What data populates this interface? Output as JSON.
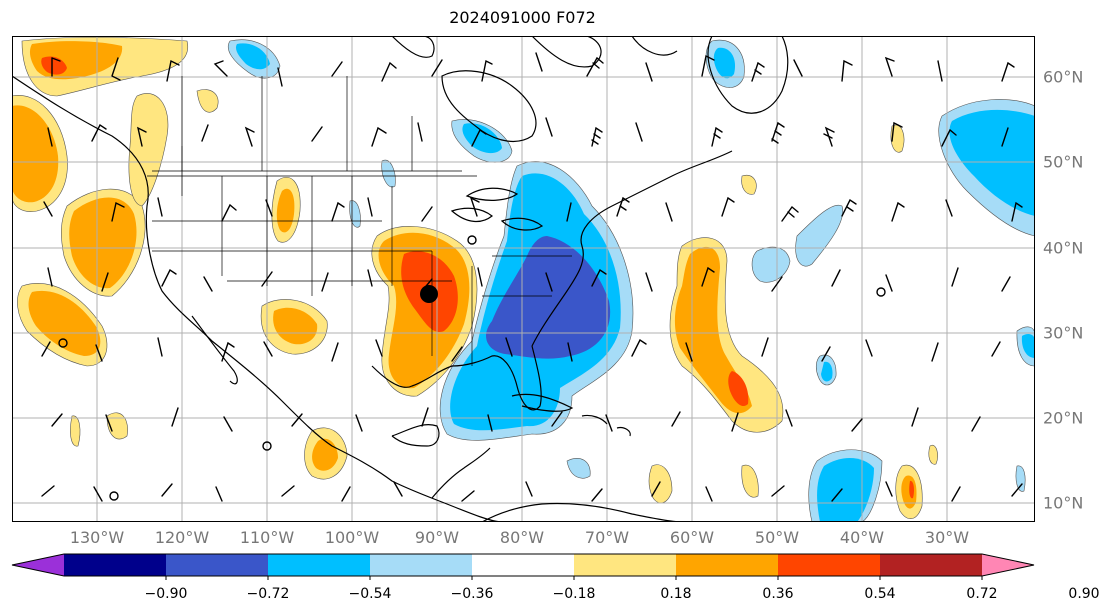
{
  "title": "2024091000 F072",
  "lon_labels": [
    "130°W",
    "120°W",
    "110°W",
    "100°W",
    "90°W",
    "80°W",
    "70°W",
    "60°W",
    "50°W",
    "40°W",
    "30°W"
  ],
  "lat_labels": [
    "60°N",
    "50°N",
    "40°N",
    "30°N",
    "20°N",
    "10°N"
  ],
  "colorbar": {
    "ticks": [
      "−0.90",
      "−0.72",
      "−0.54",
      "−0.36",
      "−0.18",
      "0.18",
      "0.36",
      "0.54",
      "0.72",
      "0.90"
    ],
    "colors": [
      "#9b30d9",
      "#00008b",
      "#3a56c9",
      "#00bfff",
      "#a6dcf7",
      "#ffffff",
      "#ffe680",
      "#ffa500",
      "#ff4500",
      "#b22222",
      "#ff86b4"
    ]
  },
  "storm_marker": "black dot",
  "colors": {
    "gridline": "#b0b0b0",
    "coast": "#000000",
    "label": "#777777"
  }
}
